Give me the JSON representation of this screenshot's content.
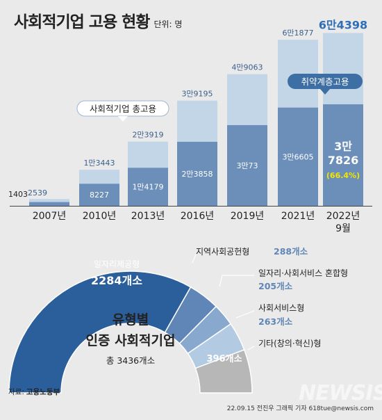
{
  "title": "사회적기업 고용 현황",
  "unit": "단위: 명",
  "source_label": "자료:",
  "source": "고용노동부",
  "credit": "22.09.15 전진우 그래픽 기자 618tue@newsis.com",
  "watermark": "NEWSIS",
  "chart_data": [
    {
      "type": "bar",
      "categories": [
        "2007년",
        "2010년",
        "2013년",
        "2016년",
        "2019년",
        "2021년",
        "2022년 9월"
      ],
      "series": [
        {
          "name": "사회적기업 총고용",
          "values": [
            2539,
            13443,
            23919,
            39195,
            49063,
            61877,
            64398
          ],
          "labels": [
            "2539",
            "1만3443",
            "2만3919",
            "3만9195",
            "4만9063",
            "6만1877",
            "6만4398"
          ]
        },
        {
          "name": "취약계층고용",
          "values": [
            1403,
            8227,
            14179,
            23858,
            30073,
            36605,
            37826
          ],
          "labels": [
            "1403",
            "8227",
            "1만4179",
            "2만3858",
            "3만73",
            "3만6605",
            "3만 7826"
          ]
        }
      ],
      "annotation": "(66.4%)",
      "colors": {
        "total": "#c3d6e8",
        "vulnerable": "#6b8fb9",
        "highlight_text": "#2f6fb5",
        "pct": "#f2e600"
      }
    },
    {
      "type": "pie",
      "center_title": "유형별 인증 사회적기업",
      "center_lines": [
        "유형별",
        "인증 사회적기업"
      ],
      "total_label": "총 3436개소",
      "total": 3436,
      "slices": [
        {
          "name": "일자리제공형",
          "value": 2284,
          "label": "2284개소",
          "color": "#2b5f9b"
        },
        {
          "name": "지역사회공헌형",
          "value": 288,
          "label": "288개소",
          "color": "#5f86b6"
        },
        {
          "name": "일자리·사회서비스 혼합형",
          "value": 205,
          "label": "205개소",
          "color": "#88a9cd"
        },
        {
          "name": "사회서비스형",
          "value": 263,
          "label": "263개소",
          "color": "#b2cbe2"
        },
        {
          "name": "기타(창의·혁신)형",
          "value": 396,
          "label": "396개소",
          "color": "#b7b7b7"
        }
      ]
    }
  ]
}
